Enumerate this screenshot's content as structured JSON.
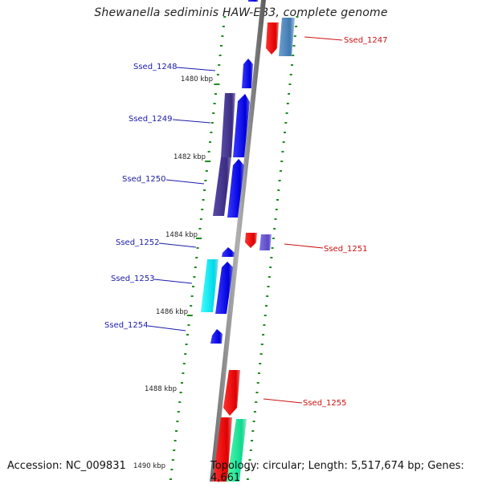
{
  "title": "Shewanella sediminis HAW-EB3, complete genome",
  "footer": {
    "accession": "Accession: NC_009831",
    "topology": "Topology: circular; Length: 5,517,674 bp; Genes: 4,661"
  },
  "colors": {
    "backbone": "#8a8a8a",
    "tick": "#1f8a1f",
    "forward_label": "#1a1aaa",
    "reverse_label": "#cc1111"
  },
  "kbp_labels": [
    "1480 kbp",
    "1482 kbp",
    "1484 kbp",
    "1486 kbp",
    "1488 kbp",
    "1490 kbp"
  ],
  "forward_genes": [
    {
      "label": "Ssed_1248"
    },
    {
      "label": "Ssed_1249"
    },
    {
      "label": "Ssed_1250"
    },
    {
      "label": "Ssed_1252"
    },
    {
      "label": "Ssed_1253"
    },
    {
      "label": "Ssed_1254"
    }
  ],
  "reverse_genes": [
    {
      "label": "Ssed_1247"
    },
    {
      "label": "Ssed_1251"
    },
    {
      "label": "Ssed_1255"
    }
  ]
}
